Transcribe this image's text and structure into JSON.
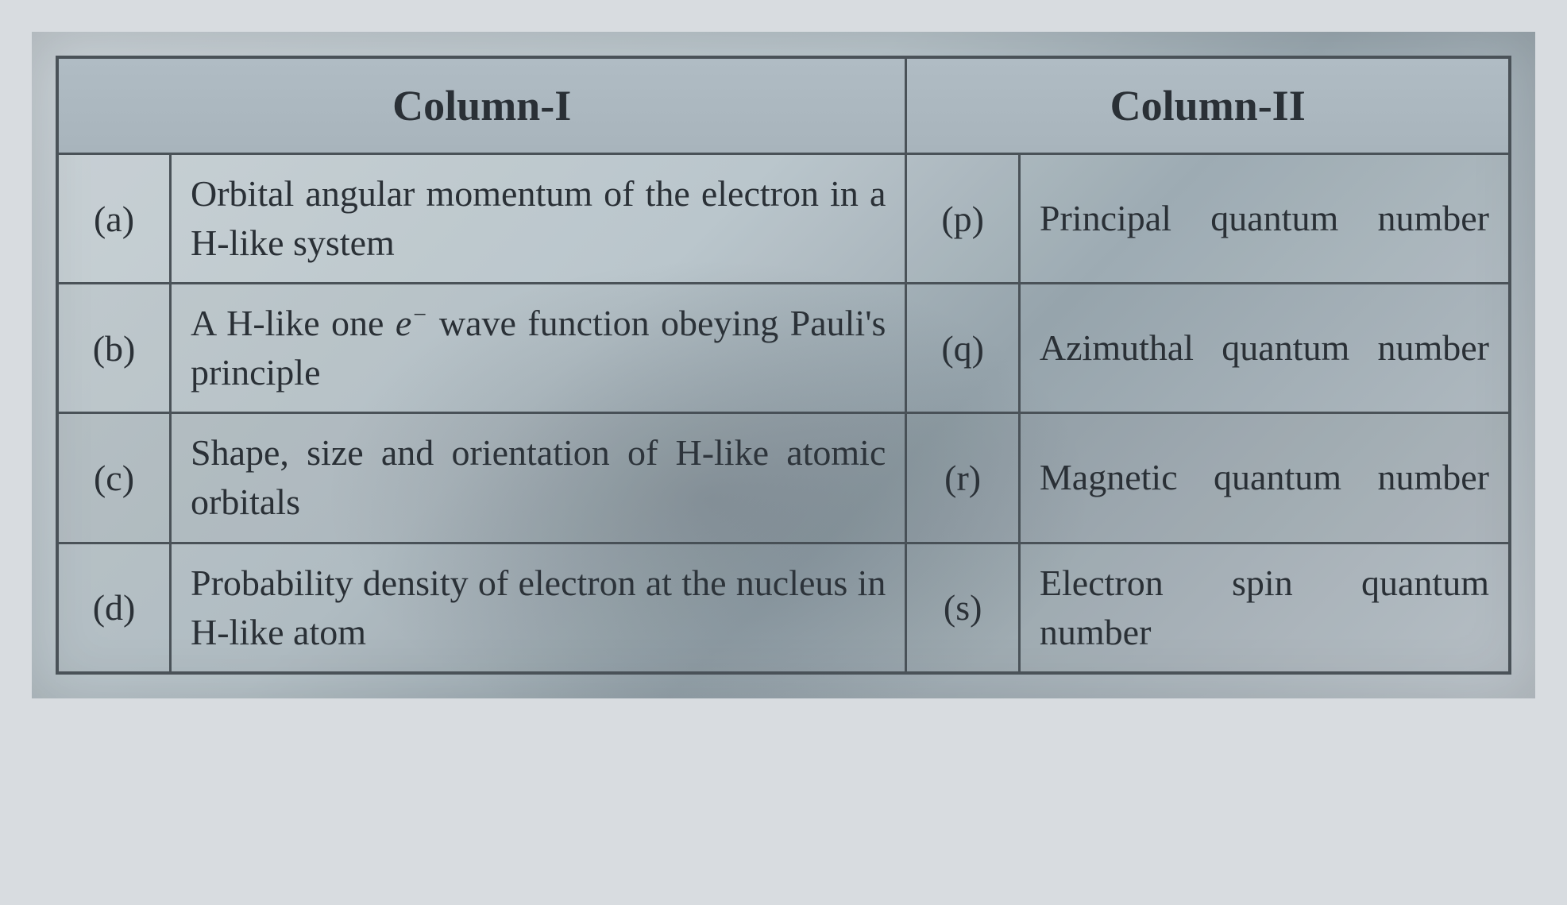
{
  "table": {
    "headers": {
      "col1": "Column-I",
      "col2": "Column-II"
    },
    "rows": [
      {
        "left_label": "(a)",
        "left_text": "Orbital angular momentum of the electron in a H-like system",
        "right_label": "(p)",
        "right_text": "Principal quantum number"
      },
      {
        "left_label": "(b)",
        "left_text_html": "A H-like one <span class=\"italic-e\">e<sup>−</sup></span> wave function obeying Pauli's principle",
        "right_label": "(q)",
        "right_text": "Azimuthal quantum number"
      },
      {
        "left_label": "(c)",
        "left_text": "Shape, size and orientation of H-like atomic orbitals",
        "right_label": "(r)",
        "right_text": "Magnetic quantum number"
      },
      {
        "left_label": "(d)",
        "left_text": "Probability density of electron at the nucleus in H-like atom",
        "right_label": "(s)",
        "right_text": "Electron spin quantum number"
      }
    ],
    "styling": {
      "border_color": "#4a5258",
      "border_width_outer": 4,
      "border_width_inner": 3,
      "header_fontsize": 54,
      "header_fontweight": "bold",
      "cell_fontsize": 46,
      "cell_fontweight": 500,
      "text_color": "#2a3036",
      "background_gradient": [
        "#c8d0d5",
        "#b8c4ca",
        "#9aa8b0",
        "#c0c8ce"
      ],
      "label_cell_width": 120,
      "col1_text_width": 780,
      "col2_text_width": 520,
      "font_family": "Times New Roman, Georgia, serif",
      "line_height": 1.35,
      "col2_justify": "justify-spread"
    }
  }
}
